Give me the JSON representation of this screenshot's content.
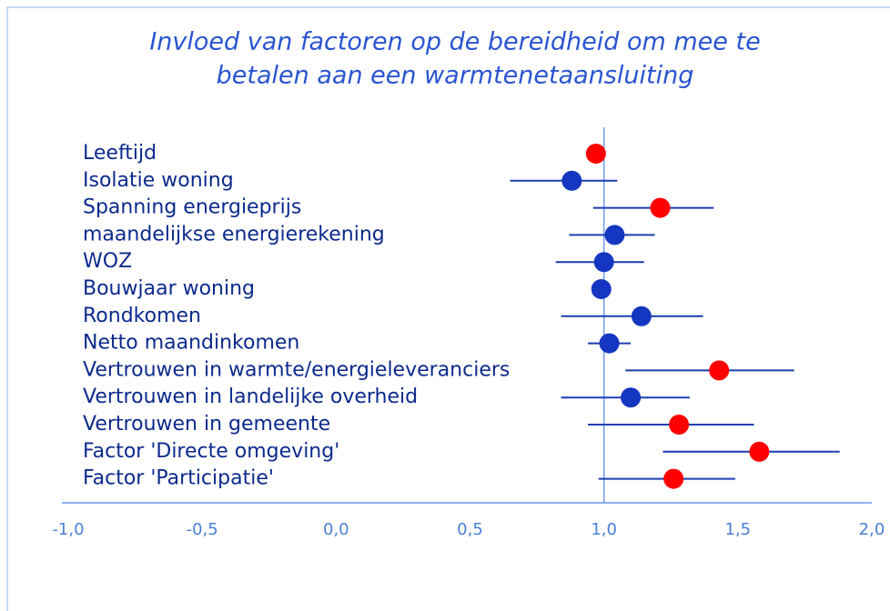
{
  "chart_data": {
    "type": "forest",
    "title": [
      "Invloed van factoren op de bereidheid om mee te",
      "betalen aan een warmtenetaansluiting"
    ],
    "categories": [
      "Leeftijd",
      "Isolatie woning",
      "Spanning energieprijs",
      "maandelijkse energierekening",
      "WOZ",
      "Bouwjaar woning",
      "Rondkomen",
      "Netto maandinkomen",
      "Vertrouwen in warmte/energieleveranciers",
      "Vertrouwen in landelijke overheid",
      "Vertrouwen in gemeente",
      "Factor 'Directe omgeving'",
      "Factor 'Participatie'"
    ],
    "values": [
      0.97,
      0.88,
      1.21,
      1.04,
      1.0,
      0.99,
      1.14,
      1.02,
      1.43,
      1.1,
      1.28,
      1.58,
      1.26
    ],
    "lower": [
      null,
      0.65,
      0.96,
      0.87,
      0.82,
      null,
      0.84,
      0.94,
      1.08,
      0.84,
      0.94,
      1.22,
      0.98
    ],
    "upper": [
      null,
      1.05,
      1.41,
      1.19,
      1.15,
      null,
      1.37,
      1.1,
      1.71,
      1.32,
      1.56,
      1.88,
      1.49
    ],
    "colors": [
      "#ff0000",
      "#1436c0",
      "#ff0000",
      "#1436c0",
      "#1436c0",
      "#1436c0",
      "#1436c0",
      "#1436c0",
      "#ff0000",
      "#1436c0",
      "#ff0000",
      "#ff0000",
      "#ff0000"
    ],
    "error_color": "#1a3fb0",
    "xlim": [
      -1,
      2
    ],
    "xticks": [
      {
        "value": -1,
        "label": "-1,0"
      },
      {
        "value": -0.5,
        "label": "-0,5"
      },
      {
        "value": 0,
        "label": "0,0"
      },
      {
        "value": 0.5,
        "label": "0,5"
      },
      {
        "value": 1,
        "label": "1,0"
      },
      {
        "value": 1.5,
        "label": "1,5"
      },
      {
        "value": 2,
        "label": "2,0"
      }
    ],
    "reference_line": 1
  }
}
